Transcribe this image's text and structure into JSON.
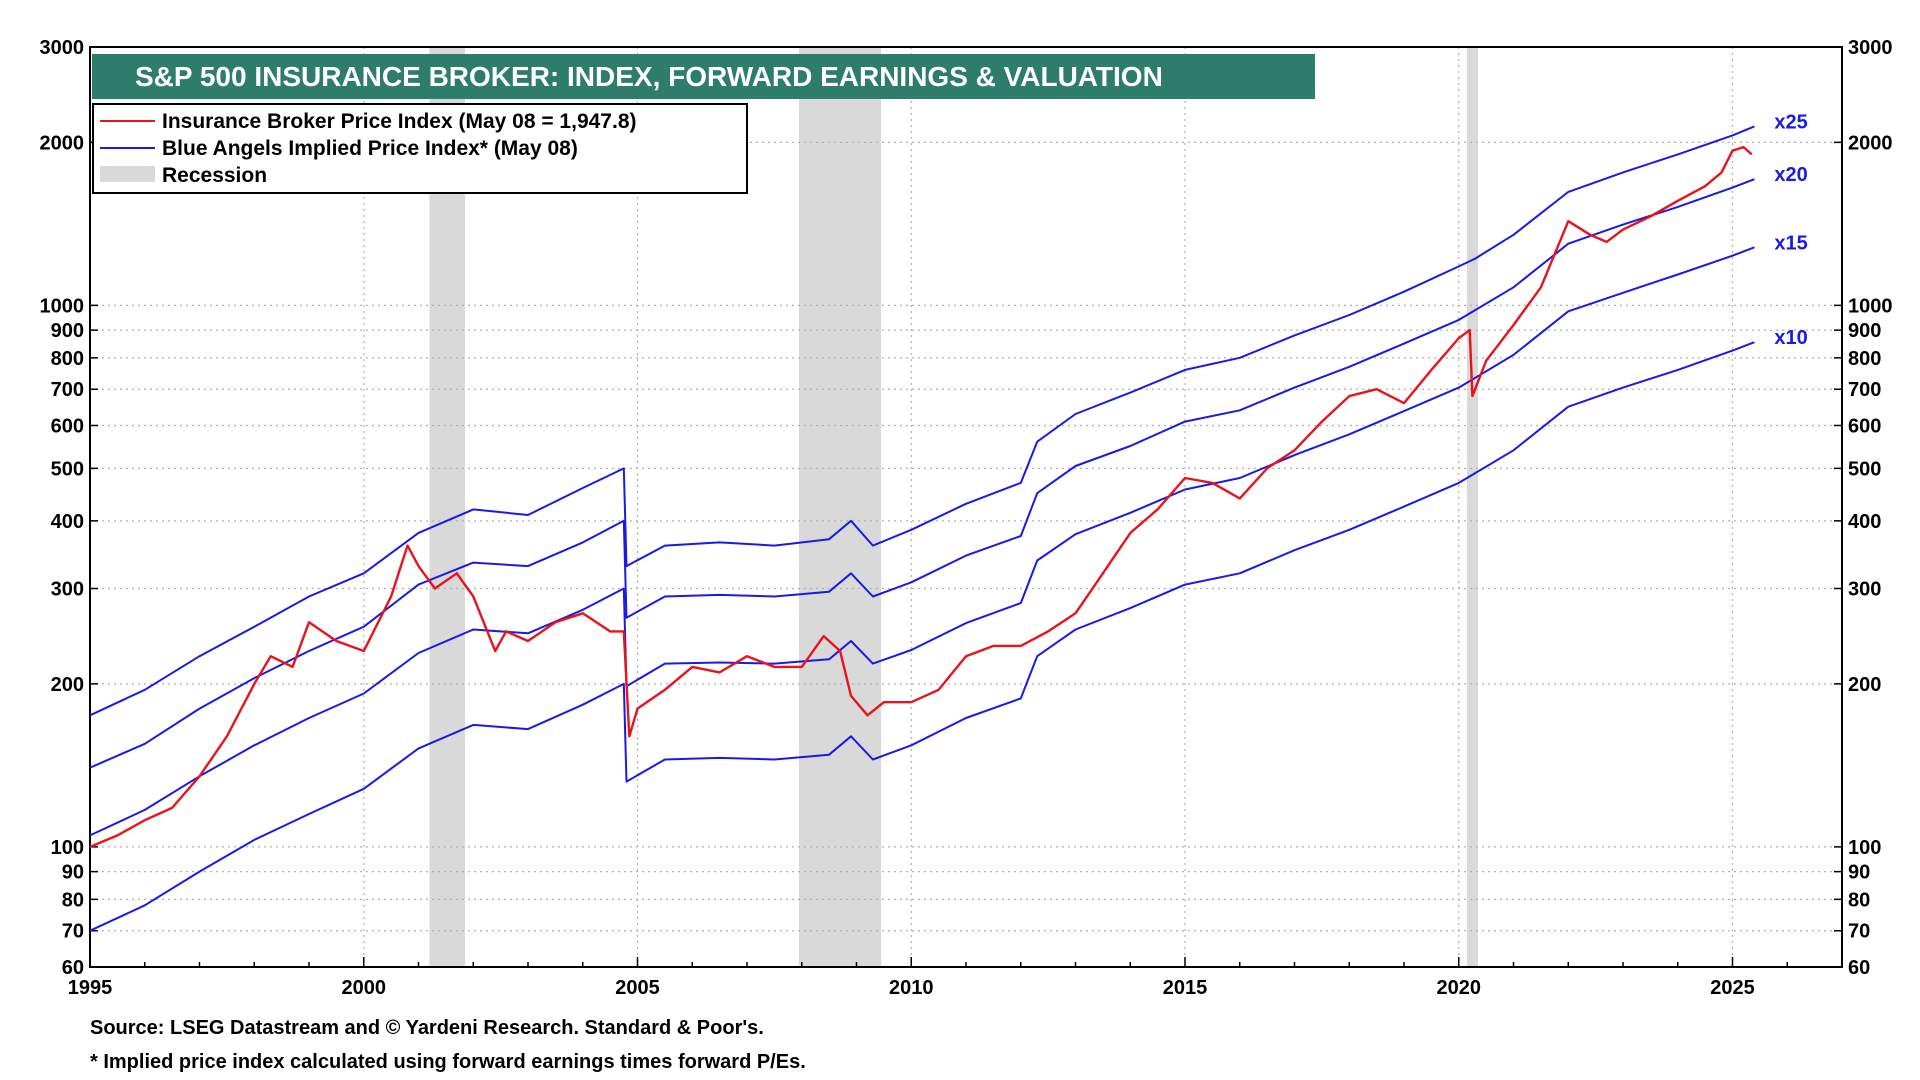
{
  "chart_data": {
    "type": "line",
    "title": "S&P 500 INSURANCE BROKER: INDEX, FORWARD EARNINGS & VALUATION",
    "y_scale": "log",
    "xlim": [
      1995,
      2027
    ],
    "ylim": [
      60,
      3000
    ],
    "grid": true,
    "x_ticks": [
      "1995",
      "2000",
      "2005",
      "2010",
      "2015",
      "2020",
      "2025"
    ],
    "y_ticks": [
      {
        "value": 60,
        "label": "60"
      },
      {
        "value": 70,
        "label": "70"
      },
      {
        "value": 80,
        "label": "80"
      },
      {
        "value": 90,
        "label": "90"
      },
      {
        "value": 100,
        "label": "100"
      },
      {
        "value": 200,
        "label": "200"
      },
      {
        "value": 300,
        "label": "300"
      },
      {
        "value": 400,
        "label": "400"
      },
      {
        "value": 500,
        "label": "500"
      },
      {
        "value": 600,
        "label": "600"
      },
      {
        "value": 700,
        "label": "700"
      },
      {
        "value": 800,
        "label": "800"
      },
      {
        "value": 900,
        "label": "900"
      },
      {
        "value": 1000,
        "label": "1000"
      },
      {
        "value": 2000,
        "label": "2000"
      },
      {
        "value": 3000,
        "label": "3000"
      }
    ],
    "legend": {
      "position": "top-left",
      "entries": [
        {
          "label": "Insurance Broker Price Index (May 08 = 1,947.8)",
          "color": "#e8141b",
          "kind": "line"
        },
        {
          "label": "Blue Angels Implied Price Index* (May 08)",
          "color": "#1a1ae6",
          "kind": "line"
        },
        {
          "label": "Recession",
          "color": "#d9d9d9",
          "kind": "box"
        }
      ]
    },
    "recessions": [
      [
        2001.2,
        2001.85
      ],
      [
        2007.95,
        2009.45
      ],
      [
        2020.15,
        2020.35
      ]
    ],
    "series": [
      {
        "name": "Insurance Broker Price Index",
        "color": "#e8141b",
        "x": [
          1995.0,
          1995.5,
          1996.0,
          1996.5,
          1997.0,
          1997.5,
          1998.0,
          1998.3,
          1998.7,
          1999.0,
          1999.5,
          2000.0,
          2000.5,
          2000.8,
          2001.0,
          2001.3,
          2001.7,
          2002.0,
          2002.4,
          2002.6,
          2003.0,
          2003.5,
          2004.0,
          2004.5,
          2004.75,
          2004.85,
          2005.0,
          2005.5,
          2006.0,
          2006.5,
          2007.0,
          2007.5,
          2008.0,
          2008.4,
          2008.7,
          2008.9,
          2009.2,
          2009.5,
          2010.0,
          2010.5,
          2011.0,
          2011.5,
          2012.0,
          2012.5,
          2013.0,
          2013.5,
          2014.0,
          2014.5,
          2015.0,
          2015.5,
          2016.0,
          2016.5,
          2017.0,
          2017.5,
          2018.0,
          2018.5,
          2019.0,
          2019.5,
          2020.0,
          2020.2,
          2020.25,
          2020.5,
          2021.0,
          2021.5,
          2022.0,
          2022.4,
          2022.7,
          2023.0,
          2023.5,
          2024.0,
          2024.5,
          2024.8,
          2025.0,
          2025.2,
          2025.35
        ],
        "values": [
          100,
          105,
          112,
          118,
          135,
          160,
          200,
          225,
          215,
          260,
          240,
          230,
          290,
          360,
          330,
          300,
          320,
          290,
          230,
          250,
          240,
          260,
          270,
          250,
          250,
          160,
          180,
          195,
          215,
          210,
          225,
          215,
          215,
          245,
          230,
          190,
          175,
          185,
          185,
          195,
          225,
          235,
          235,
          250,
          270,
          320,
          380,
          420,
          480,
          470,
          440,
          500,
          540,
          610,
          680,
          700,
          660,
          760,
          870,
          900,
          680,
          790,
          920,
          1080,
          1430,
          1350,
          1310,
          1380,
          1460,
          1560,
          1660,
          1760,
          1930,
          1960,
          1900
        ]
      },
      {
        "name": "x25",
        "color": "#1a1ae6",
        "x": [
          1995.0,
          1996.0,
          1997.0,
          1998.0,
          1999.0,
          2000.0,
          2001.0,
          2002.0,
          2003.0,
          2004.0,
          2004.75,
          2004.8,
          2005.5,
          2006.5,
          2007.5,
          2008.5,
          2008.9,
          2009.3,
          2010.0,
          2011.0,
          2012.0,
          2012.3,
          2013.0,
          2014.0,
          2015.0,
          2016.0,
          2017.0,
          2018.0,
          2019.0,
          2020.0,
          2020.3,
          2021.0,
          2022.0,
          2023.0,
          2024.0,
          2025.0,
          2025.4
        ],
        "values": [
          175,
          195,
          225,
          255,
          290,
          320,
          380,
          420,
          410,
          460,
          500,
          330,
          360,
          365,
          360,
          370,
          400,
          360,
          385,
          430,
          470,
          560,
          630,
          690,
          760,
          800,
          880,
          960,
          1060,
          1180,
          1220,
          1350,
          1620,
          1760,
          1900,
          2060,
          2140
        ]
      },
      {
        "name": "x20",
        "color": "#1a1ae6",
        "x": [
          1995.0,
          1996.0,
          1997.0,
          1998.0,
          1999.0,
          2000.0,
          2001.0,
          2002.0,
          2003.0,
          2004.0,
          2004.75,
          2004.8,
          2005.5,
          2006.5,
          2007.5,
          2008.5,
          2008.9,
          2009.3,
          2010.0,
          2011.0,
          2012.0,
          2012.3,
          2013.0,
          2014.0,
          2015.0,
          2016.0,
          2017.0,
          2018.0,
          2019.0,
          2020.0,
          2020.3,
          2021.0,
          2022.0,
          2023.0,
          2024.0,
          2025.0,
          2025.4
        ],
        "values": [
          140,
          155,
          180,
          205,
          230,
          255,
          305,
          335,
          330,
          365,
          400,
          265,
          290,
          292,
          290,
          296,
          320,
          290,
          308,
          345,
          375,
          450,
          505,
          550,
          610,
          640,
          705,
          770,
          850,
          940,
          980,
          1080,
          1300,
          1410,
          1520,
          1650,
          1710
        ]
      },
      {
        "name": "x15",
        "color": "#1a1ae6",
        "x": [
          1995.0,
          1996.0,
          1997.0,
          1998.0,
          1999.0,
          2000.0,
          2001.0,
          2002.0,
          2003.0,
          2004.0,
          2004.75,
          2004.8,
          2005.5,
          2006.5,
          2007.5,
          2008.5,
          2008.9,
          2009.3,
          2010.0,
          2011.0,
          2012.0,
          2012.3,
          2013.0,
          2014.0,
          2015.0,
          2016.0,
          2017.0,
          2018.0,
          2019.0,
          2020.0,
          2020.3,
          2021.0,
          2022.0,
          2023.0,
          2024.0,
          2025.0,
          2025.4
        ],
        "values": [
          105,
          117,
          135,
          154,
          173,
          192,
          228,
          252,
          248,
          274,
          300,
          198,
          218,
          219,
          218,
          222,
          240,
          218,
          231,
          259,
          282,
          338,
          378,
          414,
          457,
          480,
          529,
          578,
          638,
          705,
          735,
          810,
          975,
          1055,
          1140,
          1235,
          1280
        ]
      },
      {
        "name": "x10",
        "color": "#1a1ae6",
        "x": [
          1995.0,
          1996.0,
          1997.0,
          1998.0,
          1999.0,
          2000.0,
          2001.0,
          2002.0,
          2003.0,
          2004.0,
          2004.75,
          2004.8,
          2005.5,
          2006.5,
          2007.5,
          2008.5,
          2008.9,
          2009.3,
          2010.0,
          2011.0,
          2012.0,
          2012.3,
          2013.0,
          2014.0,
          2015.0,
          2016.0,
          2017.0,
          2018.0,
          2019.0,
          2020.0,
          2020.3,
          2021.0,
          2022.0,
          2023.0,
          2024.0,
          2025.0,
          2025.4
        ],
        "values": [
          70,
          78,
          90,
          103,
          115,
          128,
          152,
          168,
          165,
          183,
          200,
          132,
          145,
          146,
          145,
          148,
          160,
          145,
          154,
          173,
          188,
          225,
          252,
          276,
          305,
          320,
          353,
          385,
          425,
          470,
          490,
          540,
          650,
          705,
          760,
          825,
          855
        ]
      }
    ]
  },
  "multiplier_labels": [
    "x25",
    "x20",
    "x15",
    "x10"
  ],
  "footnotes": {
    "source": "Source: LSEG Datastream and © Yardeni Research. Standard & Poor's.",
    "note": "* Implied price index calculated using forward earnings times forward P/Es."
  },
  "colors": {
    "title_bar": "#2e7d6b",
    "price_line": "#e8141b",
    "implied_line": "#1a1ae6",
    "recession": "#d9d9d9"
  }
}
